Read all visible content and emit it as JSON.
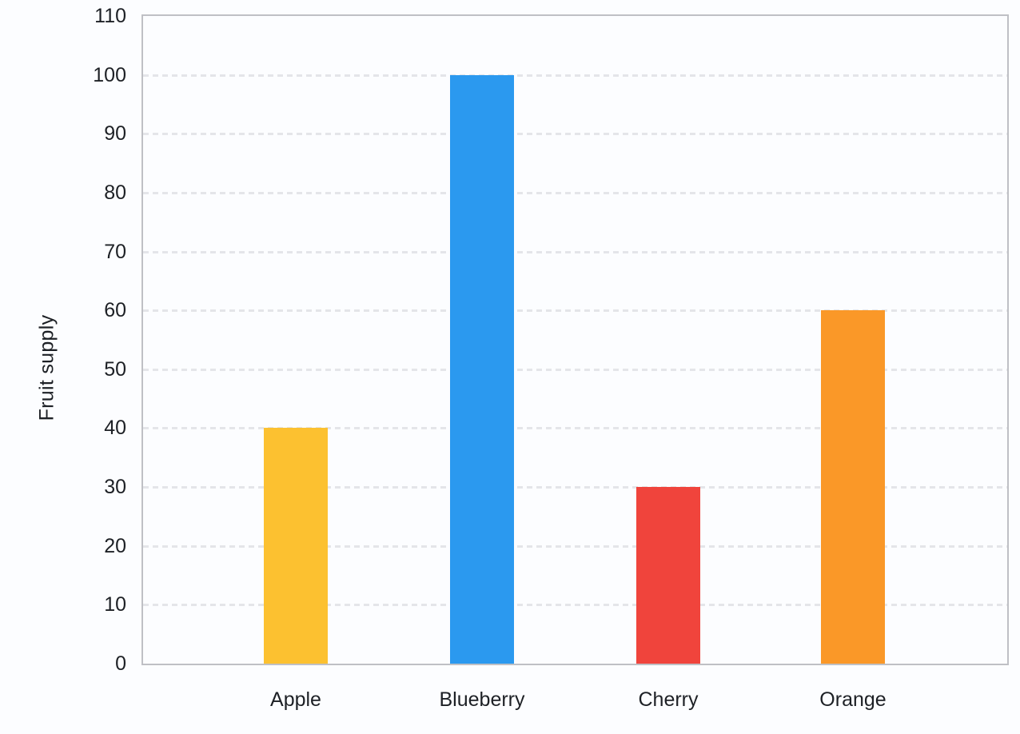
{
  "chart_data": {
    "type": "bar",
    "title": "",
    "categories": [
      "Apple",
      "Blueberry",
      "Cherry",
      "Orange"
    ],
    "values": [
      40,
      100,
      30,
      60
    ],
    "bar_colors": [
      "#FCC130",
      "#2B99EF",
      "#F0443C",
      "#FA9828"
    ],
    "xlabel": "",
    "ylabel": "Fruit supply",
    "ylim": [
      0,
      110
    ],
    "ytick_step": 10,
    "ytick_labels": [
      "0",
      "10",
      "20",
      "30",
      "40",
      "50",
      "60",
      "70",
      "80",
      "90",
      "100",
      "110"
    ],
    "grid": "horizontal-dashed",
    "legend": "none"
  },
  "colors": {
    "background": "#fcfdff",
    "plot_border": "#bfc0c5",
    "gridline": "#e4e5e9",
    "text": "#1d2025"
  }
}
